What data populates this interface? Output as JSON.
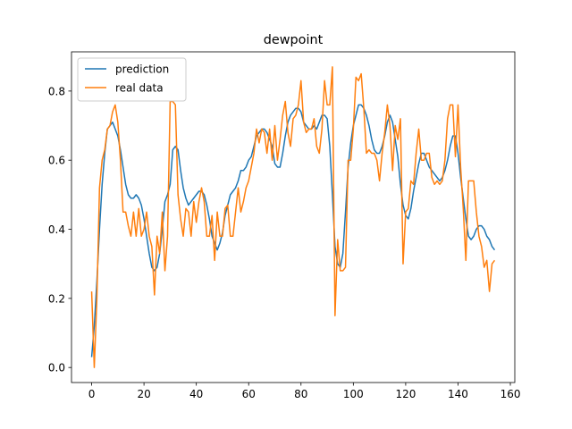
{
  "chart_data": {
    "type": "line",
    "title": "dewpoint",
    "legend": "upper left",
    "grid": false,
    "x": [
      0,
      1,
      2,
      3,
      4,
      5,
      6,
      7,
      8,
      9,
      10,
      11,
      12,
      13,
      14,
      15,
      16,
      17,
      18,
      19,
      20,
      21,
      22,
      23,
      24,
      25,
      26,
      27,
      28,
      29,
      30,
      31,
      32,
      33,
      34,
      35,
      36,
      37,
      38,
      39,
      40,
      41,
      42,
      43,
      44,
      45,
      46,
      47,
      48,
      49,
      50,
      51,
      52,
      53,
      54,
      55,
      56,
      57,
      58,
      59,
      60,
      61,
      62,
      63,
      64,
      65,
      66,
      67,
      68,
      69,
      70,
      71,
      72,
      73,
      74,
      75,
      76,
      77,
      78,
      79,
      80,
      81,
      82,
      83,
      84,
      85,
      86,
      87,
      88,
      89,
      90,
      91,
      92,
      93,
      94,
      95,
      96,
      97,
      98,
      99,
      100,
      101,
      102,
      103,
      104,
      105,
      106,
      107,
      108,
      109,
      110,
      111,
      112,
      113,
      114,
      115,
      116,
      117,
      118,
      119,
      120,
      121,
      122,
      123,
      124,
      125,
      126,
      127,
      128,
      129,
      130,
      131,
      132,
      133,
      134,
      135,
      136,
      137,
      138,
      139,
      140,
      141,
      142,
      143,
      144,
      145,
      146,
      147,
      148,
      149,
      150,
      151,
      152,
      153,
      154
    ],
    "series": [
      {
        "name": "prediction",
        "color": "#1f77b4",
        "values": [
          0.03,
          0.12,
          0.25,
          0.4,
          0.53,
          0.62,
          0.69,
          0.7,
          0.71,
          0.69,
          0.67,
          0.63,
          0.58,
          0.53,
          0.5,
          0.49,
          0.49,
          0.5,
          0.49,
          0.47,
          0.43,
          0.38,
          0.33,
          0.29,
          0.28,
          0.29,
          0.33,
          0.4,
          0.48,
          0.5,
          0.53,
          0.63,
          0.64,
          0.63,
          0.57,
          0.52,
          0.49,
          0.47,
          0.48,
          0.49,
          0.5,
          0.51,
          0.51,
          0.5,
          0.47,
          0.43,
          0.38,
          0.36,
          0.34,
          0.36,
          0.39,
          0.44,
          0.47,
          0.5,
          0.51,
          0.52,
          0.54,
          0.57,
          0.57,
          0.58,
          0.6,
          0.61,
          0.64,
          0.67,
          0.68,
          0.69,
          0.69,
          0.68,
          0.66,
          0.64,
          0.59,
          0.58,
          0.58,
          0.62,
          0.67,
          0.71,
          0.73,
          0.74,
          0.75,
          0.75,
          0.74,
          0.71,
          0.7,
          0.69,
          0.69,
          0.7,
          0.69,
          0.71,
          0.73,
          0.73,
          0.72,
          0.64,
          0.5,
          0.35,
          0.3,
          0.29,
          0.33,
          0.45,
          0.58,
          0.65,
          0.7,
          0.73,
          0.76,
          0.76,
          0.75,
          0.73,
          0.7,
          0.66,
          0.63,
          0.62,
          0.62,
          0.64,
          0.67,
          0.71,
          0.73,
          0.71,
          0.66,
          0.61,
          0.53,
          0.47,
          0.44,
          0.43,
          0.46,
          0.51,
          0.55,
          0.59,
          0.62,
          0.62,
          0.6,
          0.58,
          0.57,
          0.56,
          0.55,
          0.54,
          0.55,
          0.57,
          0.6,
          0.64,
          0.67,
          0.67,
          0.62,
          0.55,
          0.49,
          0.43,
          0.38,
          0.37,
          0.38,
          0.4,
          0.41,
          0.41,
          0.4,
          0.38,
          0.37,
          0.35,
          0.34
        ]
      },
      {
        "name": "real data",
        "color": "#ff7f0e",
        "values": [
          0.22,
          0.0,
          0.2,
          0.52,
          0.6,
          0.63,
          0.69,
          0.7,
          0.74,
          0.76,
          0.71,
          0.6,
          0.45,
          0.45,
          0.41,
          0.38,
          0.45,
          0.38,
          0.46,
          0.38,
          0.4,
          0.45,
          0.38,
          0.35,
          0.21,
          0.38,
          0.33,
          0.45,
          0.28,
          0.38,
          0.77,
          0.77,
          0.76,
          0.5,
          0.43,
          0.38,
          0.46,
          0.45,
          0.38,
          0.48,
          0.42,
          0.48,
          0.52,
          0.48,
          0.38,
          0.38,
          0.44,
          0.31,
          0.45,
          0.38,
          0.38,
          0.46,
          0.47,
          0.38,
          0.38,
          0.45,
          0.52,
          0.45,
          0.48,
          0.52,
          0.54,
          0.58,
          0.62,
          0.69,
          0.65,
          0.69,
          0.68,
          0.62,
          0.69,
          0.6,
          0.7,
          0.6,
          0.66,
          0.73,
          0.77,
          0.68,
          0.64,
          0.72,
          0.73,
          0.76,
          0.83,
          0.71,
          0.68,
          0.69,
          0.69,
          0.72,
          0.64,
          0.62,
          0.69,
          0.83,
          0.76,
          0.76,
          0.87,
          0.15,
          0.37,
          0.28,
          0.28,
          0.29,
          0.6,
          0.6,
          0.69,
          0.84,
          0.83,
          0.85,
          0.75,
          0.62,
          0.63,
          0.62,
          0.62,
          0.6,
          0.54,
          0.62,
          0.68,
          0.76,
          0.7,
          0.57,
          0.7,
          0.66,
          0.72,
          0.3,
          0.45,
          0.46,
          0.54,
          0.53,
          0.62,
          0.69,
          0.6,
          0.6,
          0.62,
          0.62,
          0.55,
          0.53,
          0.54,
          0.53,
          0.54,
          0.6,
          0.72,
          0.76,
          0.76,
          0.61,
          0.76,
          0.58,
          0.46,
          0.31,
          0.54,
          0.54,
          0.54,
          0.45,
          0.38,
          0.35,
          0.29,
          0.31,
          0.22,
          0.3,
          0.31
        ]
      }
    ],
    "xlim": [
      -7.7,
      161.7
    ],
    "ylim": [
      -0.0435,
      0.9135
    ],
    "xticks": [
      0,
      20,
      40,
      60,
      80,
      100,
      120,
      140,
      160
    ],
    "yticks": [
      {
        "value": 0,
        "label": "0.0"
      },
      0.2,
      0.4,
      0.6,
      0.8
    ]
  }
}
